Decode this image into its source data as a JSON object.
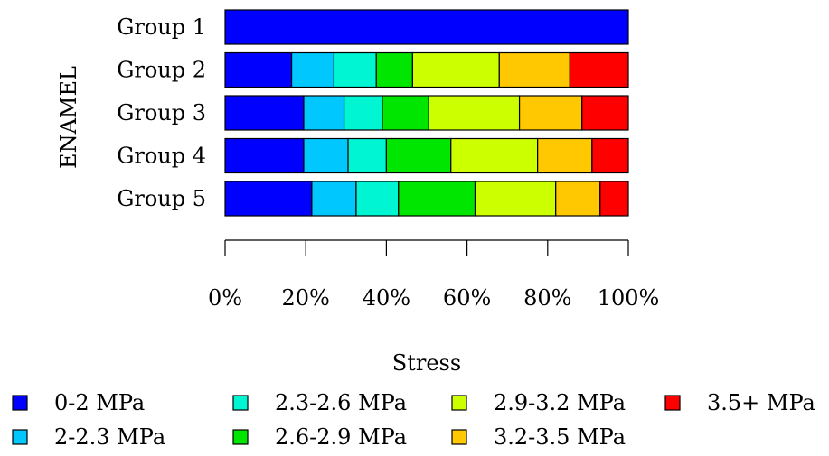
{
  "chart_data": {
    "type": "bar",
    "orientation": "horizontal",
    "stacked": true,
    "normalized": true,
    "xlabel": "Stress",
    "ylabel": "ENAMEL",
    "categories": [
      "Group 1",
      "Group 2",
      "Group 3",
      "Group 4",
      "Group 5"
    ],
    "xlim": [
      0,
      100
    ],
    "x_ticks": [
      0,
      20,
      40,
      60,
      80,
      100
    ],
    "x_tick_labels": [
      "0%",
      "20%",
      "40%",
      "60%",
      "80%",
      "100%"
    ],
    "series": [
      {
        "name": "0-2 MPa",
        "color": "#0000ff",
        "values": [
          100,
          16.5,
          19.5,
          19.5,
          21.5
        ]
      },
      {
        "name": "2-2.3 MPa",
        "color": "#00c8ff",
        "values": [
          0,
          10.5,
          10,
          11,
          11
        ]
      },
      {
        "name": "2.3-2.6 MPa",
        "color": "#00f5d2",
        "values": [
          0,
          10.5,
          9.5,
          9.5,
          10.5
        ]
      },
      {
        "name": "2.6-2.9 MPa",
        "color": "#00e600",
        "values": [
          0,
          9,
          11.5,
          16,
          19
        ]
      },
      {
        "name": "2.9-3.2 MPa",
        "color": "#ccff00",
        "values": [
          0,
          21.5,
          22.5,
          21.5,
          20
        ]
      },
      {
        "name": "3.2-3.5 MPa",
        "color": "#ffc800",
        "values": [
          0,
          17.5,
          15.5,
          13.5,
          11
        ]
      },
      {
        "name": "3.5+ MPa",
        "color": "#ff0000",
        "values": [
          0,
          14.5,
          11.5,
          9,
          7
        ]
      }
    ],
    "legend_position": "bottom",
    "grid": false
  }
}
